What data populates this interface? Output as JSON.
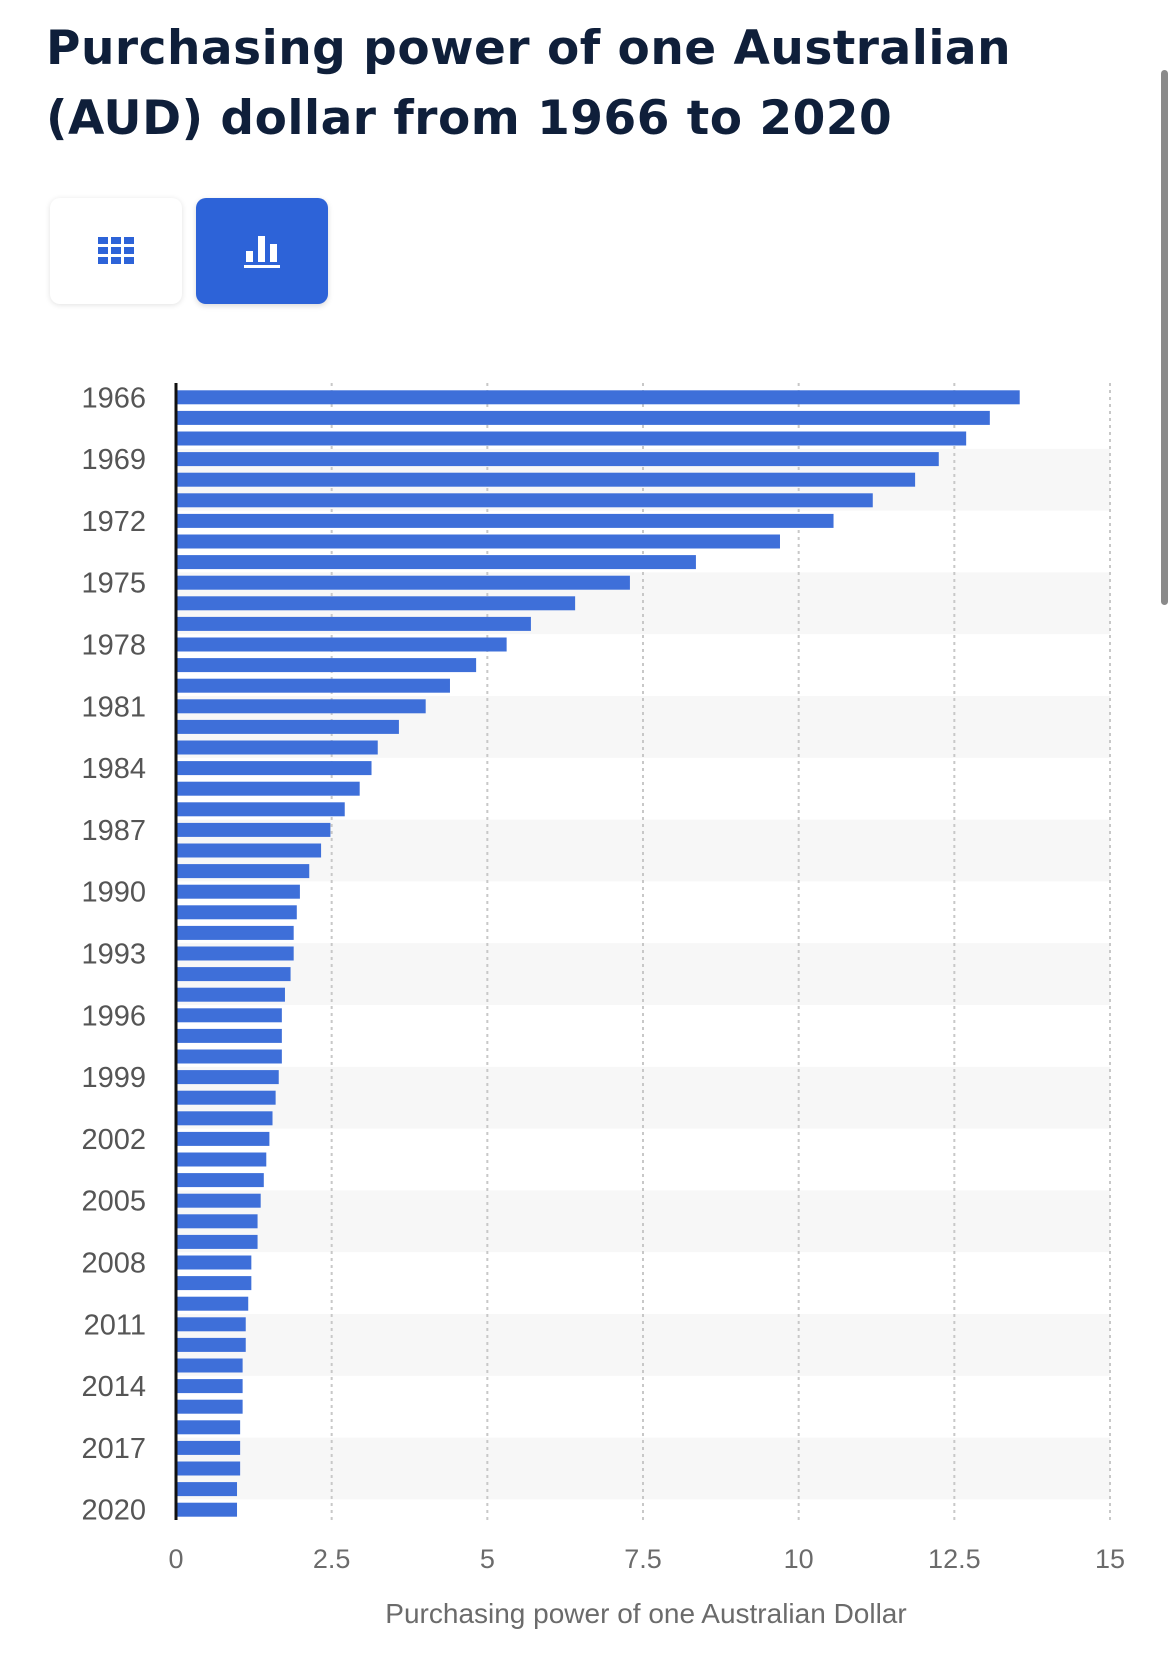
{
  "title": "Purchasing power of one Australian (AUD) dollar from 1966 to 2020",
  "icons": {
    "table_view": "table-grid-icon",
    "chart_view": "bar-chart-icon"
  },
  "colors": {
    "bar": "#3e6fd9",
    "title": "#0f1f3a",
    "active_toggle": "#2d63d8",
    "band": "#f7f7f7"
  },
  "chart_data": {
    "type": "bar",
    "orientation": "horizontal",
    "title": "Purchasing power of one Australian (AUD) dollar from 1966 to 2020",
    "xlabel": "Purchasing power of one Australian Dollar",
    "ylabel": "",
    "xlim": [
      0,
      15
    ],
    "x_ticks": [
      "0",
      "2.5",
      "5",
      "7.5",
      "10",
      "12.5",
      "15"
    ],
    "y_tick_labels": [
      "1966",
      "1969",
      "1972",
      "1975",
      "1978",
      "1981",
      "1984",
      "1987",
      "1990",
      "1993",
      "1996",
      "1999",
      "2002",
      "2005",
      "2008",
      "2011",
      "2014",
      "2017",
      "2020"
    ],
    "grid": true,
    "categories": [
      "1966",
      "1967",
      "1968",
      "1969",
      "1970",
      "1971",
      "1972",
      "1973",
      "1974",
      "1975",
      "1976",
      "1977",
      "1978",
      "1979",
      "1980",
      "1981",
      "1982",
      "1983",
      "1984",
      "1985",
      "1986",
      "1987",
      "1988",
      "1989",
      "1990",
      "1991",
      "1992",
      "1993",
      "1994",
      "1995",
      "1996",
      "1997",
      "1998",
      "1999",
      "2000",
      "2001",
      "2002",
      "2003",
      "2004",
      "2005",
      "2006",
      "2007",
      "2008",
      "2009",
      "2010",
      "2011",
      "2012",
      "2013",
      "2014",
      "2015",
      "2016",
      "2017",
      "2018",
      "2019",
      "2020"
    ],
    "values": [
      13.55,
      13.07,
      12.69,
      12.25,
      11.87,
      11.19,
      10.56,
      9.7,
      8.35,
      7.29,
      6.41,
      5.7,
      5.31,
      4.82,
      4.4,
      4.01,
      3.58,
      3.24,
      3.14,
      2.95,
      2.71,
      2.48,
      2.33,
      2.14,
      1.99,
      1.94,
      1.89,
      1.89,
      1.84,
      1.75,
      1.7,
      1.7,
      1.7,
      1.65,
      1.6,
      1.55,
      1.5,
      1.45,
      1.41,
      1.36,
      1.31,
      1.31,
      1.21,
      1.21,
      1.16,
      1.12,
      1.12,
      1.07,
      1.07,
      1.07,
      1.03,
      1.03,
      1.03,
      0.98,
      0.98
    ]
  }
}
